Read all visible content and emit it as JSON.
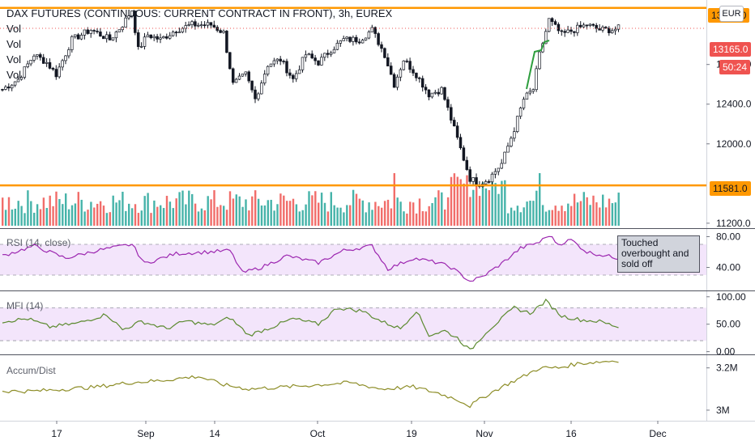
{
  "title": "DAX FUTURES (CONTINUOUS: CURRENT CONTRACT IN FRONT), 3h, EUREX",
  "currency_button": "EUR",
  "volume_labels": [
    "Vol",
    "Vol",
    "Vol",
    "Vol"
  ],
  "price_tags": {
    "resistance": "13370.0",
    "last": "13165.0",
    "countdown": "50:24",
    "support": "11581.0"
  },
  "annotation": "Touched overbought and sold off",
  "colors": {
    "up": "#26a69a",
    "down": "#ef5350",
    "level_line": "#ff9800",
    "rsi_line": "#9c27b0",
    "mfi_line": "#5b8a2f",
    "ad_line": "#8d8d27",
    "band_fill": "#f3e5fb"
  },
  "chart_data": [
    {
      "type": "candlestick",
      "title": "DAX FUTURES (CONTINUOUS: CURRENT CONTRACT IN FRONT), 3h, EUREX",
      "x_ticks": [
        "17",
        "Sep",
        "14",
        "Oct",
        "19",
        "Nov",
        "16",
        "Dec"
      ],
      "y_ticks": [
        11200.0,
        11600.0,
        12000.0,
        12400.0,
        12800.0,
        13200.0
      ],
      "y_tick_labels": [
        "11200.0",
        "12000.0",
        "12400.0",
        "12800.0"
      ],
      "ylim": [
        11150,
        13450
      ],
      "horizontal_levels": [
        13370.0,
        11581.0
      ],
      "last_price": 13165.0,
      "close_keypoints": [
        {
          "x": 0,
          "y": 12550
        },
        {
          "x": 5,
          "y": 12650
        },
        {
          "x": 10,
          "y": 12900
        },
        {
          "x": 14,
          "y": 12820
        },
        {
          "x": 17,
          "y": 12700
        },
        {
          "x": 22,
          "y": 13050
        },
        {
          "x": 28,
          "y": 13150
        },
        {
          "x": 34,
          "y": 13050
        },
        {
          "x": 38,
          "y": 13200
        },
        {
          "x": 41,
          "y": 13350
        },
        {
          "x": 43,
          "y": 12950
        },
        {
          "x": 46,
          "y": 13100
        },
        {
          "x": 50,
          "y": 13050
        },
        {
          "x": 55,
          "y": 13150
        },
        {
          "x": 60,
          "y": 13200
        },
        {
          "x": 66,
          "y": 13200
        },
        {
          "x": 70,
          "y": 13120
        },
        {
          "x": 73,
          "y": 12600
        },
        {
          "x": 77,
          "y": 12700
        },
        {
          "x": 80,
          "y": 12450
        },
        {
          "x": 84,
          "y": 12800
        },
        {
          "x": 88,
          "y": 12850
        },
        {
          "x": 92,
          "y": 12650
        },
        {
          "x": 96,
          "y": 12900
        },
        {
          "x": 100,
          "y": 12820
        },
        {
          "x": 104,
          "y": 12950
        },
        {
          "x": 108,
          "y": 13050
        },
        {
          "x": 113,
          "y": 13050
        },
        {
          "x": 117,
          "y": 13150
        },
        {
          "x": 121,
          "y": 12900
        },
        {
          "x": 124,
          "y": 12600
        },
        {
          "x": 127,
          "y": 12850
        },
        {
          "x": 131,
          "y": 12700
        },
        {
          "x": 135,
          "y": 12500
        },
        {
          "x": 139,
          "y": 12550
        },
        {
          "x": 142,
          "y": 12250
        },
        {
          "x": 145,
          "y": 11950
        },
        {
          "x": 148,
          "y": 11650
        },
        {
          "x": 151,
          "y": 11600
        },
        {
          "x": 154,
          "y": 11650
        },
        {
          "x": 158,
          "y": 11800
        },
        {
          "x": 162,
          "y": 12150
        },
        {
          "x": 165,
          "y": 12450
        },
        {
          "x": 168,
          "y": 12550
        },
        {
          "x": 170,
          "y": 12900
        },
        {
          "x": 173,
          "y": 13250
        },
        {
          "x": 177,
          "y": 13100
        },
        {
          "x": 181,
          "y": 13150
        },
        {
          "x": 185,
          "y": 13200
        },
        {
          "x": 189,
          "y": 13150
        },
        {
          "x": 193,
          "y": 13150
        },
        {
          "x": 195,
          "y": 13165
        }
      ]
    },
    {
      "type": "bar",
      "name": "Vol",
      "note": "volume histogram overlay, colored by candle direction; approximate shape only"
    },
    {
      "type": "line",
      "title": "RSI (14, close)",
      "y_ticks": [
        40.0,
        80.0
      ],
      "y_tick_labels": [
        "40.00",
        "80.00"
      ],
      "ylim": [
        10,
        90
      ],
      "bands": [
        30,
        70
      ],
      "keypoints": [
        {
          "x": 0,
          "y": 55
        },
        {
          "x": 10,
          "y": 68
        },
        {
          "x": 20,
          "y": 52
        },
        {
          "x": 30,
          "y": 62
        },
        {
          "x": 41,
          "y": 70
        },
        {
          "x": 45,
          "y": 45
        },
        {
          "x": 55,
          "y": 58
        },
        {
          "x": 65,
          "y": 60
        },
        {
          "x": 72,
          "y": 62
        },
        {
          "x": 76,
          "y": 33
        },
        {
          "x": 82,
          "y": 40
        },
        {
          "x": 90,
          "y": 55
        },
        {
          "x": 100,
          "y": 46
        },
        {
          "x": 108,
          "y": 62
        },
        {
          "x": 117,
          "y": 68
        },
        {
          "x": 122,
          "y": 38
        },
        {
          "x": 130,
          "y": 52
        },
        {
          "x": 138,
          "y": 46
        },
        {
          "x": 142,
          "y": 40
        },
        {
          "x": 148,
          "y": 22
        },
        {
          "x": 152,
          "y": 28
        },
        {
          "x": 158,
          "y": 45
        },
        {
          "x": 164,
          "y": 65
        },
        {
          "x": 170,
          "y": 73
        },
        {
          "x": 173,
          "y": 82
        },
        {
          "x": 176,
          "y": 70
        },
        {
          "x": 180,
          "y": 76
        },
        {
          "x": 185,
          "y": 60
        },
        {
          "x": 190,
          "y": 56
        },
        {
          "x": 195,
          "y": 52
        }
      ]
    },
    {
      "type": "line",
      "title": "MFI (14)",
      "y_ticks": [
        0.0,
        50.0,
        100.0
      ],
      "y_tick_labels": [
        "0.00",
        "50.00",
        "100.00"
      ],
      "ylim": [
        -5,
        110
      ],
      "bands": [
        20,
        80
      ],
      "keypoints": [
        {
          "x": 0,
          "y": 55
        },
        {
          "x": 8,
          "y": 60
        },
        {
          "x": 15,
          "y": 45
        },
        {
          "x": 24,
          "y": 52
        },
        {
          "x": 33,
          "y": 68
        },
        {
          "x": 38,
          "y": 40
        },
        {
          "x": 44,
          "y": 55
        },
        {
          "x": 52,
          "y": 42
        },
        {
          "x": 58,
          "y": 56
        },
        {
          "x": 66,
          "y": 48
        },
        {
          "x": 72,
          "y": 62
        },
        {
          "x": 78,
          "y": 30
        },
        {
          "x": 84,
          "y": 42
        },
        {
          "x": 92,
          "y": 60
        },
        {
          "x": 100,
          "y": 50
        },
        {
          "x": 106,
          "y": 80
        },
        {
          "x": 114,
          "y": 74
        },
        {
          "x": 120,
          "y": 55
        },
        {
          "x": 126,
          "y": 42
        },
        {
          "x": 131,
          "y": 75
        },
        {
          "x": 135,
          "y": 30
        },
        {
          "x": 140,
          "y": 38
        },
        {
          "x": 144,
          "y": 25
        },
        {
          "x": 148,
          "y": 2
        },
        {
          "x": 153,
          "y": 35
        },
        {
          "x": 158,
          "y": 60
        },
        {
          "x": 162,
          "y": 80
        },
        {
          "x": 167,
          "y": 70
        },
        {
          "x": 172,
          "y": 92
        },
        {
          "x": 177,
          "y": 65
        },
        {
          "x": 183,
          "y": 58
        },
        {
          "x": 189,
          "y": 55
        },
        {
          "x": 195,
          "y": 45
        }
      ]
    },
    {
      "type": "line",
      "title": "Accum/Dist",
      "y_ticks": [
        3.0,
        3.2
      ],
      "y_tick_labels": [
        "3M",
        "3.2M"
      ],
      "ylim": [
        2.95,
        3.26
      ],
      "keypoints": [
        {
          "x": 0,
          "y": 3.09
        },
        {
          "x": 10,
          "y": 3.09
        },
        {
          "x": 20,
          "y": 3.1
        },
        {
          "x": 30,
          "y": 3.11
        },
        {
          "x": 40,
          "y": 3.13
        },
        {
          "x": 50,
          "y": 3.14
        },
        {
          "x": 62,
          "y": 3.16
        },
        {
          "x": 70,
          "y": 3.12
        },
        {
          "x": 78,
          "y": 3.1
        },
        {
          "x": 90,
          "y": 3.11
        },
        {
          "x": 100,
          "y": 3.12
        },
        {
          "x": 110,
          "y": 3.13
        },
        {
          "x": 120,
          "y": 3.1
        },
        {
          "x": 130,
          "y": 3.11
        },
        {
          "x": 138,
          "y": 3.08
        },
        {
          "x": 144,
          "y": 3.05
        },
        {
          "x": 148,
          "y": 3.02
        },
        {
          "x": 152,
          "y": 3.06
        },
        {
          "x": 158,
          "y": 3.11
        },
        {
          "x": 165,
          "y": 3.16
        },
        {
          "x": 170,
          "y": 3.2
        },
        {
          "x": 176,
          "y": 3.2
        },
        {
          "x": 182,
          "y": 3.22
        },
        {
          "x": 190,
          "y": 3.23
        },
        {
          "x": 195,
          "y": 3.235
        }
      ]
    }
  ]
}
